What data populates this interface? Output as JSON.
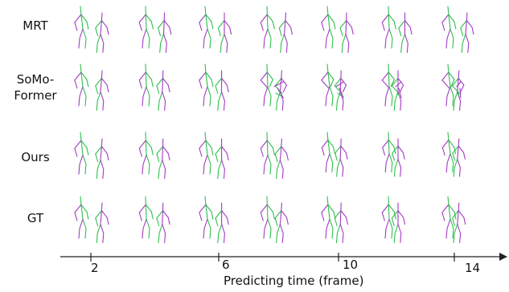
{
  "rows": [
    {
      "label": "MRT"
    },
    {
      "label": "SoMo-\nFormer"
    },
    {
      "label": "Ours"
    },
    {
      "label": "GT"
    }
  ],
  "axis": {
    "title": "Predicting time (frame)",
    "ticks": [
      "2",
      "6",
      "10",
      "14"
    ]
  },
  "colors": {
    "person_a": "#2fbf4f",
    "person_b": "#a23bc4",
    "axis": "#222222"
  },
  "frames_per_row": 7
}
